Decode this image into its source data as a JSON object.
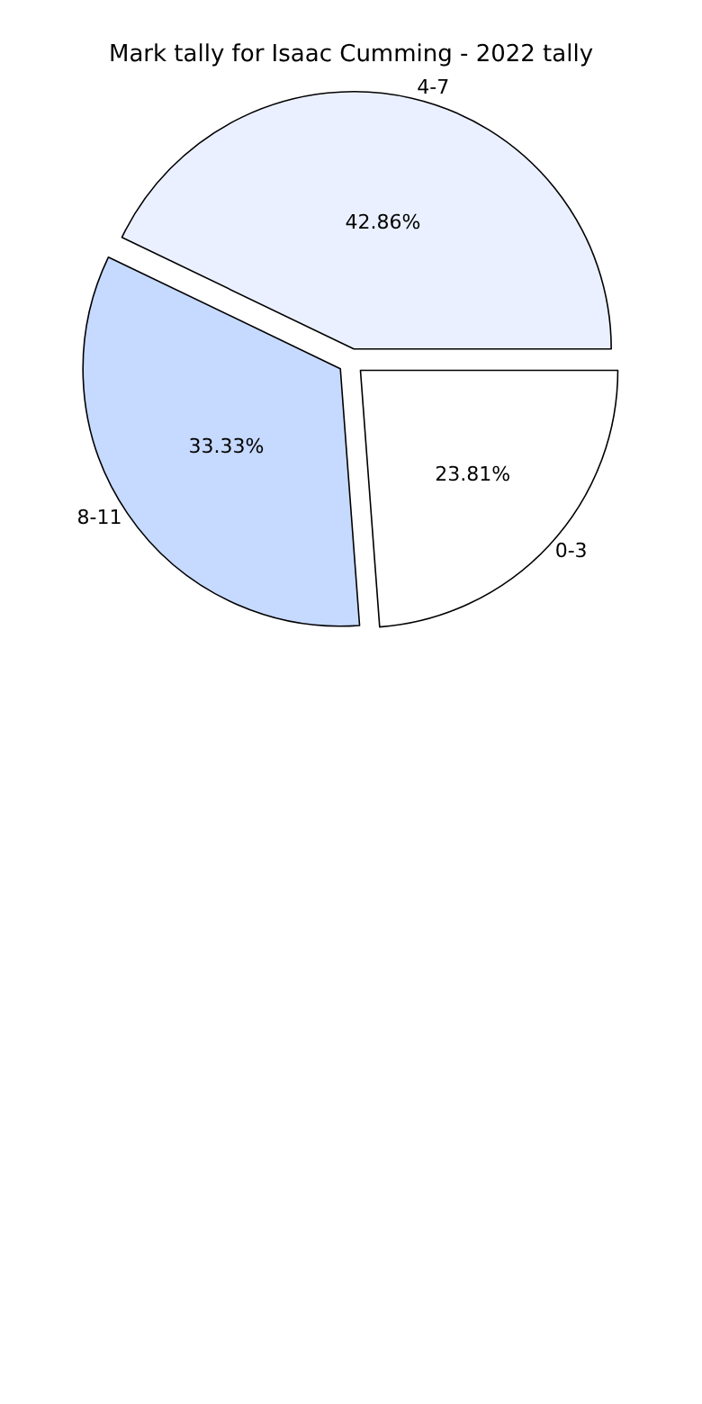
{
  "chart_data": {
    "type": "pie",
    "title": "Mark tally for Isaac Cumming - 2022 tally",
    "categories": [
      "0-3",
      "4-7",
      "8-11"
    ],
    "values": [
      23.81,
      42.86,
      33.33
    ],
    "colors": [
      "#ffffff",
      "#eaf0ff",
      "#c6d9ff"
    ],
    "value_labels": [
      "23.81%",
      "42.86%",
      "33.33%"
    ]
  }
}
